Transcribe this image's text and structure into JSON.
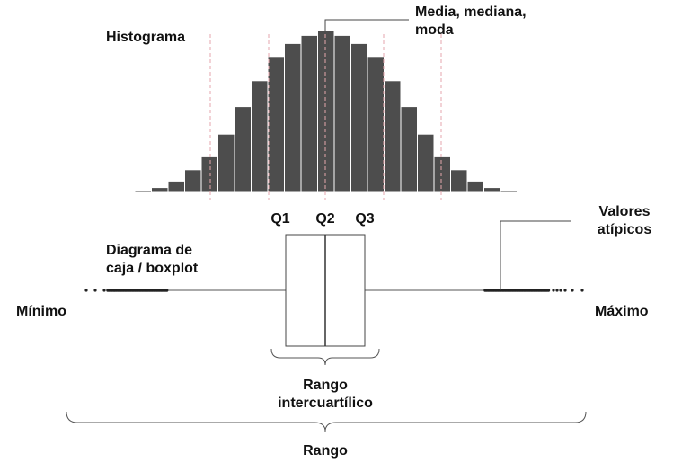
{
  "labels": {
    "histogram": "Histograma",
    "mean_line1": "Media, mediana,",
    "mean_line2": "moda",
    "q1": "Q1",
    "q2": "Q2",
    "q3": "Q3",
    "boxplot_line1": "Diagrama de",
    "boxplot_line2": "caja / boxplot",
    "outliers_line1": "Valores",
    "outliers_line2": "atípicos",
    "minimum": "Mínimo",
    "maximum": "Máximo",
    "iqr_line1": "Rango",
    "iqr_line2": "intercuartílico",
    "range": "Rango"
  },
  "histogram_relative_heights": [
    0.01,
    0.03,
    0.07,
    0.14,
    0.22,
    0.36,
    0.53,
    0.69,
    0.84,
    0.92,
    0.97,
    1.0,
    0.97,
    0.92,
    0.84,
    0.69,
    0.53,
    0.36,
    0.22,
    0.14,
    0.07,
    0.03,
    0.01
  ],
  "colors": {
    "bar": "#4d4d4d",
    "dashed_line": "#e5a6ac",
    "stroke": "#333333",
    "text": "#111111"
  }
}
